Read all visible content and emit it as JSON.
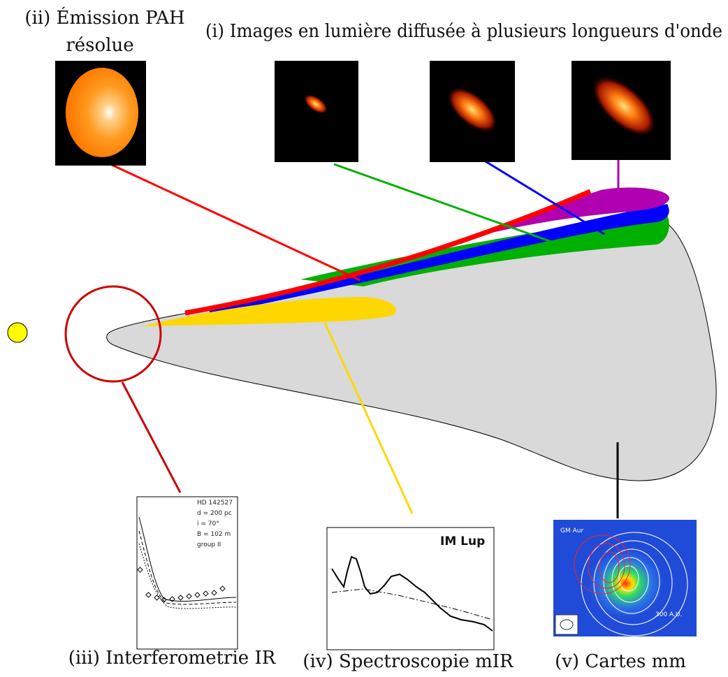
{
  "labels": {
    "pah_line1": "(ii) Émission PAH",
    "pah_line2": "résolue",
    "scattered": "(i) Images en lumière diffusée à plusieurs longueurs d'onde",
    "interfero": "(iii) Interferometrie IR",
    "spectro": "(iv) Spectroscopie mIR",
    "cartes": "(v) Cartes mm"
  },
  "interfero_legend": [
    "HD 142527",
    "d = 200 pc",
    "i = 70°",
    "B = 102 m",
    "group II"
  ],
  "spectro_title": "IM Lup",
  "map_labels": {
    "source": "GM Aur",
    "scale": "300 A.U."
  },
  "colors": {
    "star": "#ffff00",
    "disk": "#d9d9d9",
    "pah": "#ff0000",
    "scatter_short": "#00b000",
    "scatter_mid": "#0000ff",
    "scatter_long": "#b000b0",
    "midir": "#ffd700",
    "inner_ring": "#cc0000",
    "mm": "#000000"
  }
}
